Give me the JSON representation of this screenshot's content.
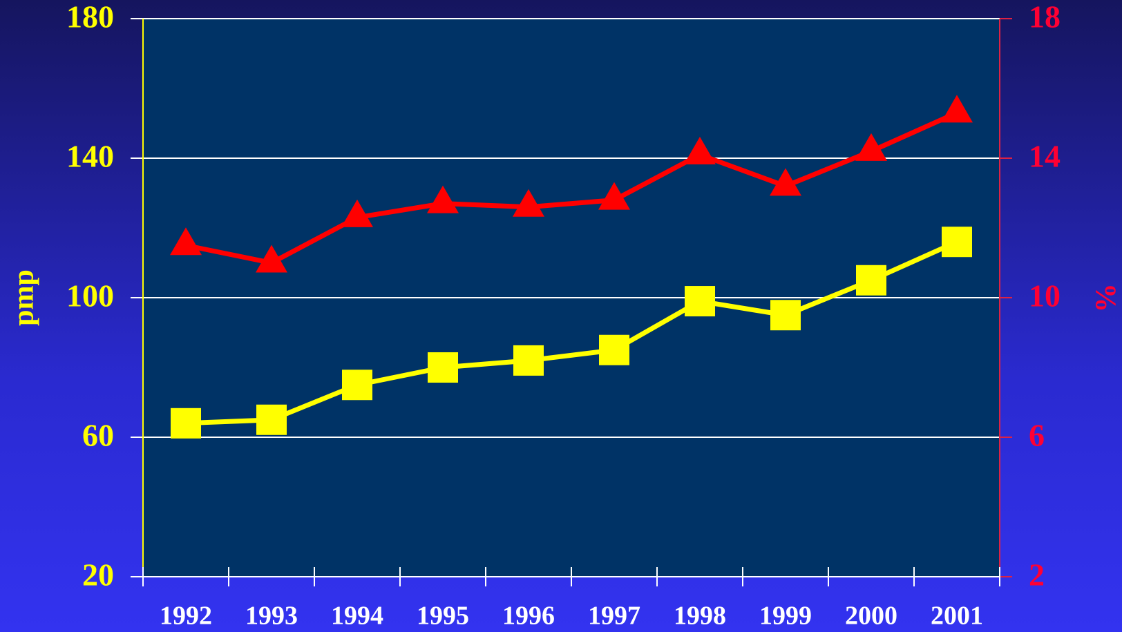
{
  "chart_data": {
    "type": "line",
    "ylabel": "pmp",
    "y2label": "%",
    "categories": [
      "1992",
      "1993",
      "1994",
      "1995",
      "1996",
      "1997",
      "1998",
      "1999",
      "2000",
      "2001"
    ],
    "series": [
      {
        "color": "#ffff00",
        "marker": "square",
        "values": [
          64,
          65,
          75,
          80,
          82,
          85,
          99,
          95,
          105,
          116
        ]
      },
      {
        "color": "#ff0000",
        "marker": "triangle",
        "axis": "y2",
        "values": [
          11.5,
          11.0,
          12.3,
          12.7,
          12.6,
          12.8,
          14.1,
          13.2,
          14.2,
          15.3
        ]
      }
    ],
    "ylim": [
      20,
      180
    ],
    "yticks": [
      20,
      60,
      100,
      140,
      180
    ],
    "y2lim": [
      2,
      18
    ],
    "y2ticks": [
      2,
      6,
      10,
      14,
      18
    ],
    "grid": true
  }
}
